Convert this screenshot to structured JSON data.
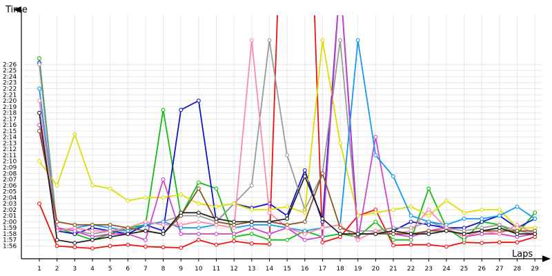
{
  "chart_data": {
    "type": "line",
    "xlabel": "Laps",
    "ylabel": "Time",
    "grid": true,
    "x": [
      1,
      2,
      3,
      4,
      5,
      6,
      7,
      8,
      9,
      10,
      11,
      12,
      13,
      14,
      15,
      16,
      17,
      18,
      19,
      20,
      21,
      22,
      23,
      24,
      25,
      26,
      27,
      28,
      29
    ],
    "x_tick_labels": [
      "1",
      "2",
      "3",
      "4",
      "5",
      "6",
      "7",
      "8",
      "9",
      "10",
      "11",
      "12",
      "13",
      "14",
      "15",
      "16",
      "17",
      "18",
      "19",
      "20",
      "21",
      "22",
      "23",
      "24",
      "25",
      "26",
      "27",
      "28",
      "29"
    ],
    "y_tick_labels": [
      "1:56",
      "1:57",
      "1:58",
      "1:59",
      "2:00",
      "2:01",
      "2:02",
      "2:03",
      "2:04",
      "2:05",
      "2:06",
      "2:07",
      "2:08",
      "2:09",
      "2:10",
      "2:11",
      "2:12",
      "2:13",
      "2:14",
      "2:15",
      "2:16",
      "2:17",
      "2:18",
      "2:19",
      "2:20",
      "2:21",
      "2:22",
      "2:23",
      "2:24",
      "2:25",
      "2:26"
    ],
    "ylim_seconds": [
      115,
      146.5
    ],
    "series": [
      {
        "color": "#ee1111",
        "values": [
          123,
          116,
          115.8,
          115.6,
          116,
          116.2,
          115.9,
          115.8,
          115.7,
          117,
          116.2,
          116.8,
          116.4,
          116.3,
          200,
          200,
          116.6,
          117.5,
          121,
          122,
          116.1,
          116.2,
          116.2,
          115.9,
          116.6,
          116.5,
          116.6,
          116.6,
          117.5
        ]
      },
      {
        "color": "#11bb11",
        "values": [
          147,
          119,
          118,
          117,
          118,
          119,
          119.5,
          138.5,
          121,
          126.5,
          125.5,
          117.5,
          118,
          117,
          117,
          118.5,
          117.5,
          118,
          117.5,
          120,
          117,
          117,
          125.5,
          119,
          117,
          120,
          119.5,
          118,
          121.5
        ]
      },
      {
        "color": "#1111cc",
        "values": [
          146.3,
          118.5,
          118,
          119,
          118.5,
          118,
          119.5,
          118.5,
          138.5,
          140,
          120,
          123,
          122.3,
          123,
          121,
          128.5,
          120,
          160,
          118,
          118,
          118.5,
          120,
          119.5,
          119,
          119,
          120,
          121,
          119,
          120.5
        ]
      },
      {
        "color": "#999999",
        "values": [
          146,
          119,
          118.5,
          118,
          118.5,
          118.5,
          119.5,
          120,
          121,
          121,
          120,
          123,
          126,
          150,
          131,
          122,
          128,
          150,
          118.5,
          118.5,
          119,
          119,
          120,
          119,
          118.5,
          119,
          119.5,
          118.5,
          118
        ]
      },
      {
        "color": "#dddd00",
        "values": [
          130,
          126,
          134.5,
          126,
          125.5,
          123.5,
          124,
          124,
          124.5,
          123,
          122.5,
          123,
          122,
          122,
          122.5,
          121.5,
          150,
          133,
          121,
          121.5,
          122,
          122.5,
          121,
          123.5,
          121.5,
          122,
          122,
          119,
          119
        ]
      },
      {
        "color": "#cc44cc",
        "values": [
          136,
          119,
          118.5,
          117.5,
          118,
          118,
          117,
          127,
          118,
          118,
          118,
          118,
          119,
          118,
          119,
          117,
          117.5,
          160,
          117,
          134,
          118,
          117.5,
          118.5,
          119,
          117.5,
          118,
          118,
          117.5,
          118
        ]
      },
      {
        "color": "#1199ee",
        "values": [
          142,
          118.5,
          119,
          119.5,
          119,
          118.5,
          119.5,
          120,
          119,
          119,
          119.5,
          119,
          119.5,
          119.5,
          119,
          118.5,
          119,
          119.5,
          150,
          131,
          127.5,
          121,
          120,
          119.5,
          120.5,
          120.5,
          121,
          122.5,
          120.5
        ]
      },
      {
        "color": "#ff88aa",
        "values": [
          140,
          118.5,
          119,
          118.5,
          118.5,
          119,
          120,
          119.5,
          119.5,
          120,
          119.5,
          119,
          150,
          121.5,
          119,
          118,
          119,
          119.5,
          117,
          118.5,
          118,
          118.5,
          122,
          119,
          117.5,
          118.5,
          118,
          119.5,
          118
        ]
      },
      {
        "color": "#885522",
        "values": [
          135,
          120,
          119.5,
          119.5,
          119.5,
          119,
          118.5,
          118,
          121,
          125.5,
          120,
          119.5,
          120,
          120,
          119.5,
          120,
          128,
          119,
          118,
          118,
          118,
          118,
          118.5,
          118.5,
          118,
          118.5,
          118.5,
          118.5,
          118.5
        ]
      },
      {
        "color": "#222222",
        "values": [
          138,
          117,
          116.5,
          117,
          117.5,
          118,
          118.5,
          118,
          121.5,
          121.5,
          120.5,
          120,
          120,
          120,
          120.5,
          127.5,
          120.5,
          118,
          118,
          118,
          118.5,
          118,
          118,
          118.5,
          118,
          118.5,
          119,
          118,
          118
        ]
      }
    ]
  }
}
